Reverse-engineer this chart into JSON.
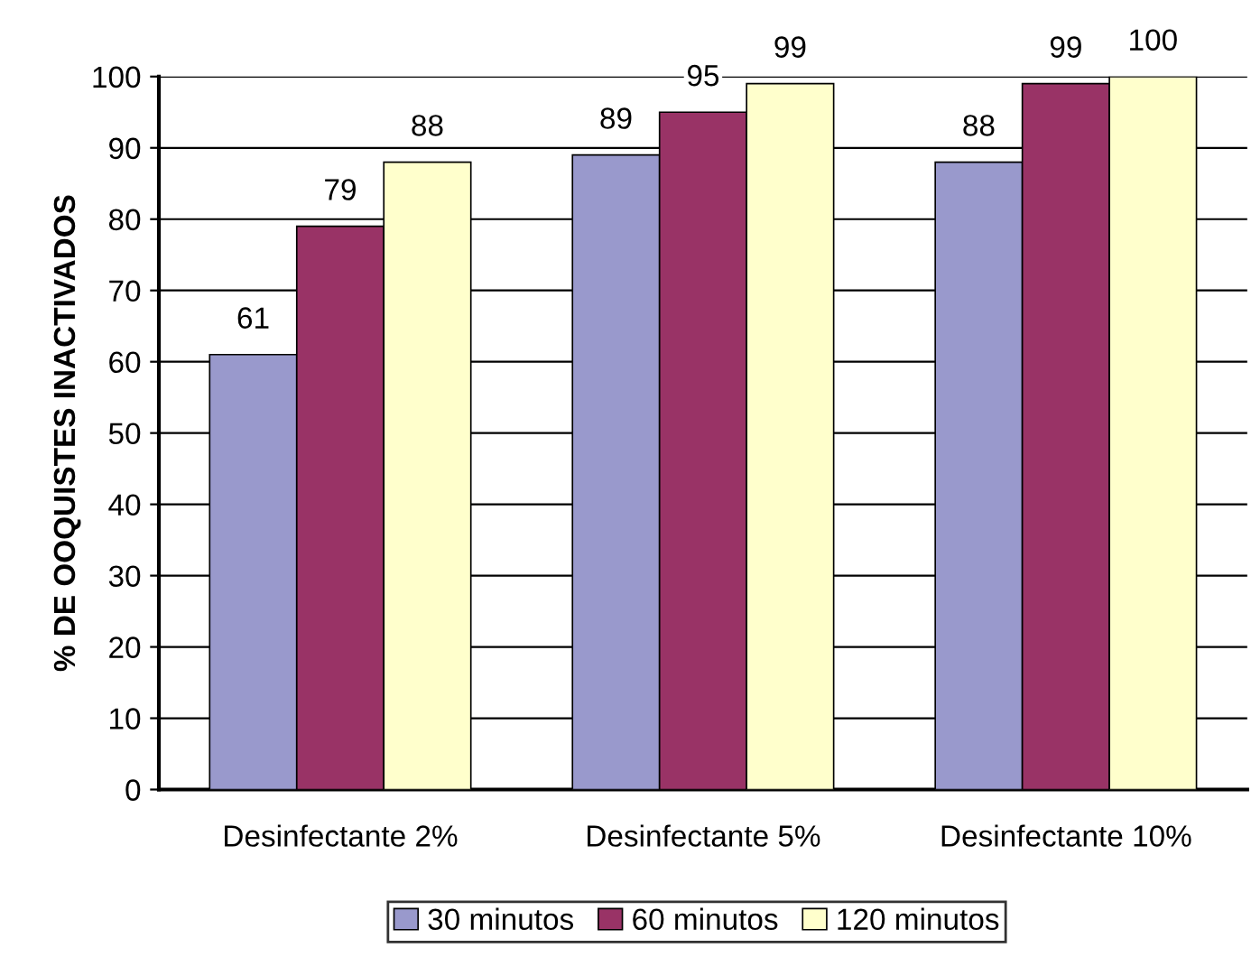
{
  "chart_data": {
    "type": "bar",
    "ylabel": "% DE OOQUISTES INACTIVADOS",
    "categories": [
      "Desinfectante 2%",
      "Desinfectante 5%",
      "Desinfectante 10%"
    ],
    "series": [
      {
        "name": "30 minutos",
        "color": "#9999cc",
        "values": [
          61,
          89,
          88
        ]
      },
      {
        "name": "60 minutos",
        "color": "#993366",
        "values": [
          79,
          95,
          99
        ]
      },
      {
        "name": "120 minutos",
        "color": "#ffffcc",
        "values": [
          88,
          99,
          100
        ]
      }
    ],
    "ylim": [
      0,
      100
    ],
    "yticks": [
      0,
      10,
      20,
      30,
      40,
      50,
      60,
      70,
      80,
      90,
      100
    ],
    "grid": "y",
    "legend": "bottom",
    "data_labels": true
  }
}
